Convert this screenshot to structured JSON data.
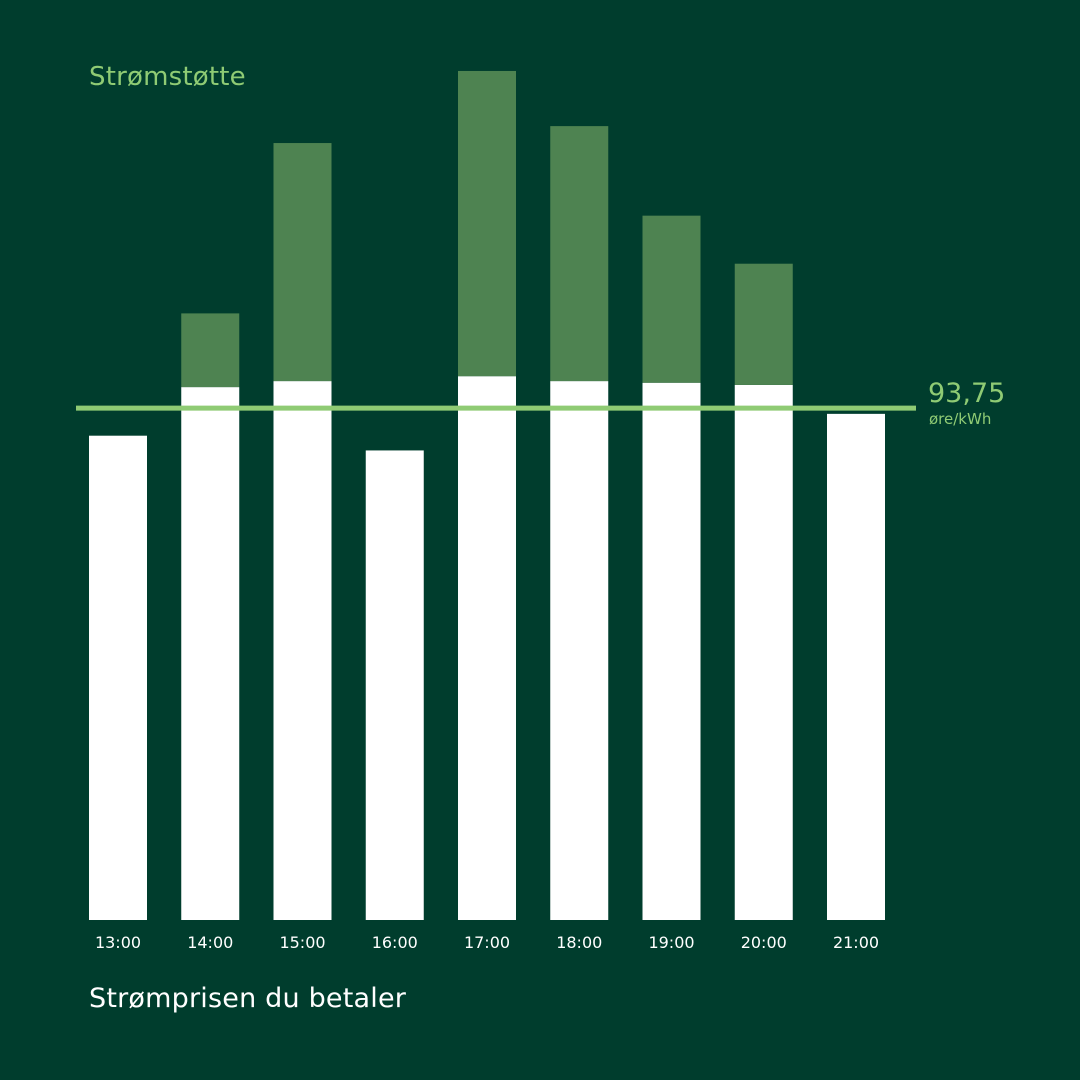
{
  "chart_data": {
    "type": "bar",
    "stacked": true,
    "categories": [
      "13:00",
      "14:00",
      "15:00",
      "16:00",
      "17:00",
      "18:00",
      "19:00",
      "20:00",
      "21:00"
    ],
    "series": [
      {
        "name": "Strømprisen du betaler",
        "color": "#ffffff",
        "values": [
          88.7,
          97.6,
          98.7,
          86.0,
          99.6,
          98.7,
          98.4,
          98.0,
          92.7
        ]
      },
      {
        "name": "Strømstøtte",
        "color": "#4e8351",
        "values": [
          0.0,
          13.5,
          43.6,
          0.0,
          55.9,
          46.7,
          30.6,
          22.2,
          0.0
        ]
      }
    ],
    "threshold": {
      "value": 93.75,
      "label": "93,75",
      "unit": "øre/kWh",
      "color": "#8fcb74"
    },
    "ylim": [
      0,
      160
    ]
  },
  "legend": {
    "subsidy_label": "Strømstøtte",
    "price_label": "Strømprisen du betaler"
  },
  "colors": {
    "background": "#003d2d",
    "accent": "#8fcb74"
  }
}
